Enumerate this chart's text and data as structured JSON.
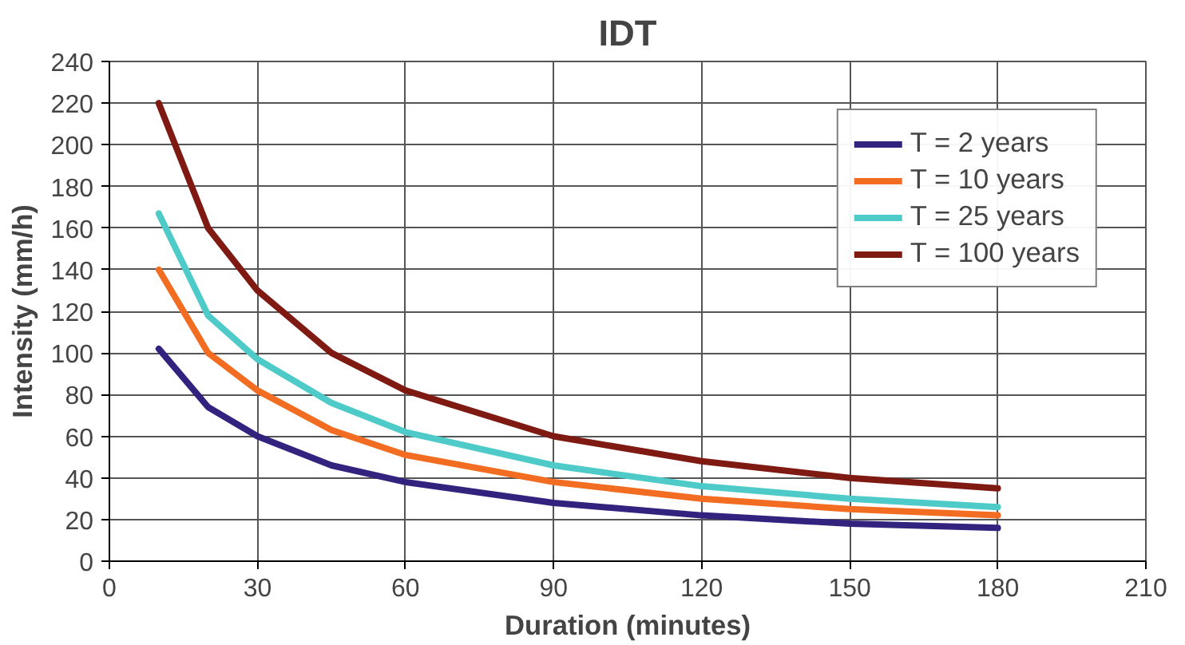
{
  "chart_data": {
    "type": "line",
    "title": "IDT",
    "xlabel": "Duration (minutes)",
    "ylabel": "Intensity (mm/h)",
    "x": [
      10,
      20,
      30,
      45,
      60,
      90,
      120,
      150,
      180
    ],
    "series": [
      {
        "name": "T = 2 years",
        "color": "#33237f",
        "values": [
          102,
          74,
          60,
          46,
          38,
          28,
          22,
          18,
          16
        ]
      },
      {
        "name": "T = 10 years",
        "color": "#f26d21",
        "values": [
          140,
          100,
          82,
          63,
          51,
          38,
          30,
          25,
          22
        ]
      },
      {
        "name": "T = 25 years",
        "color": "#4ecbc8",
        "values": [
          167,
          118,
          97,
          76,
          62,
          46,
          36,
          30,
          26
        ]
      },
      {
        "name": "T = 100 years",
        "color": "#7f1a12",
        "values": [
          220,
          160,
          130,
          100,
          82,
          60,
          48,
          40,
          35
        ]
      }
    ],
    "xlim": [
      0,
      210
    ],
    "xticks": [
      0,
      30,
      60,
      90,
      120,
      150,
      180,
      210
    ],
    "ylim": [
      0,
      240
    ],
    "yticks": [
      0,
      20,
      40,
      60,
      80,
      100,
      120,
      140,
      160,
      180,
      200,
      220,
      240
    ],
    "grid": true,
    "legend": "top right",
    "marker": "none",
    "line_style": "solid"
  }
}
